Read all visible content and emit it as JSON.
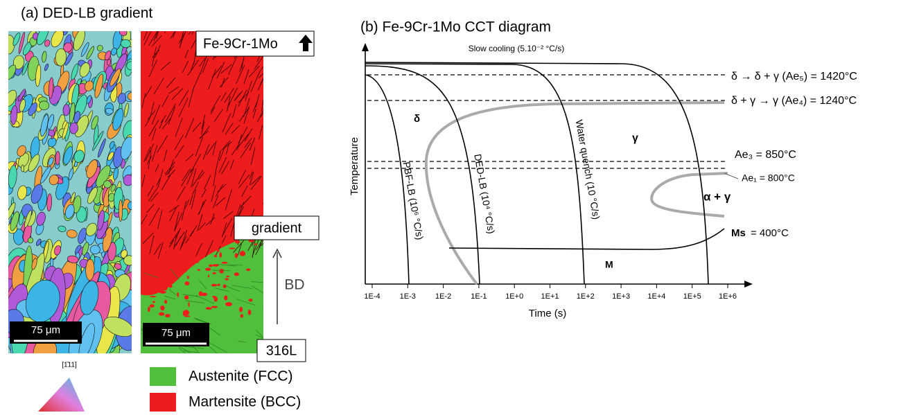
{
  "panel_a": {
    "title": "(a) DED-LB gradient",
    "top_label": "Fe-9Cr-1Mo",
    "middle_label": "gradient",
    "build_direction": "BD",
    "bottom_label": "316L",
    "scale_bar_left": "75 μm",
    "scale_bar_right": "75 μm",
    "ipf_label": "[1̄11]",
    "legend": [
      "Austenite (FCC)",
      "Martensite (BCC)"
    ]
  },
  "panel_b": {
    "title": "(b) Fe-9Cr-1Mo CCT diagram",
    "x_label": "Time (s)",
    "y_label": "Temperature",
    "xticks": [
      "1E-4",
      "1E-3",
      "1E-2",
      "1E-1",
      "1E+0",
      "1E+1",
      "1E+2",
      "1E+3",
      "1E+4",
      "1E+5",
      "1E+6"
    ],
    "slow_cooling": "Slow cooling (5.10⁻² °C/s)",
    "curves": [
      "PBF-LB (10⁶ °C/s)",
      "DED-LB (10⁴ °C/s)",
      "Water quench (10 °C/s)"
    ],
    "lines": [
      "δ → δ + γ (Ae₅) = 1420°C",
      "δ + γ → γ (Ae₄) = 1240°C",
      "Ae₃ = 850°C",
      "Ae₁ = 800°C"
    ],
    "ms": "Ms",
    "ms_value": "= 400°C",
    "phases": [
      "δ",
      "γ",
      "α + γ",
      "M"
    ]
  }
}
